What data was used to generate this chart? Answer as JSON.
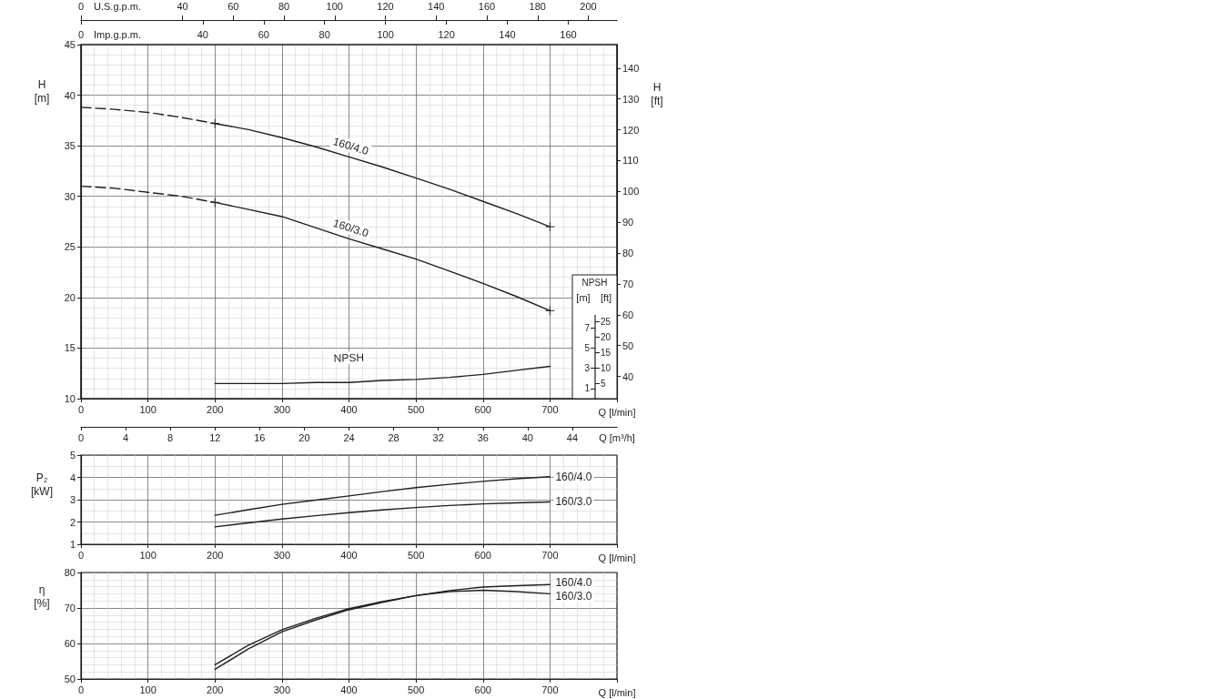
{
  "chart_data": [
    {
      "type": "line",
      "xlabel": "Q [l/min]",
      "ylabel": "H [m]",
      "y2label": "H [ft]",
      "x2label": "U.S.g.p.m.",
      "xlim": [
        0,
        800
      ],
      "xticks": [
        0,
        100,
        200,
        300,
        400,
        500,
        600,
        700
      ],
      "x2lim": [
        0,
        211.3
      ],
      "x2ticks": [
        0,
        40,
        60,
        80,
        100,
        120,
        140,
        160,
        180,
        200
      ],
      "ylim": [
        10,
        45
      ],
      "yticks": [
        10,
        15,
        20,
        25,
        30,
        35,
        40,
        45
      ],
      "y2lim": [
        32.8,
        147.6
      ],
      "y2ticks": [
        40,
        50,
        60,
        70,
        80,
        90,
        100,
        110,
        120,
        130,
        140
      ],
      "grid": true,
      "series": [
        {
          "name": "160/4.0",
          "color": "#1f1f1f",
          "line_style": "solid",
          "x": [
            200,
            250,
            300,
            350,
            400,
            450,
            500,
            550,
            600,
            650,
            700
          ],
          "values": [
            37.2,
            36.6,
            35.8,
            34.9,
            33.9,
            32.9,
            31.8,
            30.7,
            29.5,
            28.3,
            27.0
          ]
        },
        {
          "name": "160/3.0",
          "color": "#1f1f1f",
          "line_style": "solid",
          "x": [
            200,
            250,
            300,
            350,
            400,
            450,
            500,
            550,
            600,
            650,
            700
          ],
          "values": [
            29.4,
            28.7,
            28.0,
            26.9,
            25.8,
            24.8,
            23.8,
            22.6,
            21.4,
            20.1,
            18.7
          ]
        },
        {
          "color": "#1f1f1f",
          "line_style": "dashed",
          "x": [
            0,
            50,
            100,
            150,
            200
          ],
          "values": [
            38.8,
            38.6,
            38.3,
            37.8,
            37.2
          ]
        },
        {
          "color": "#1f1f1f",
          "line_style": "dashed",
          "x": [
            0,
            50,
            100,
            150,
            200
          ],
          "values": [
            31.0,
            30.8,
            30.4,
            30.0,
            29.4
          ]
        },
        {
          "type": "scatter",
          "marker": "cross",
          "color": "#1f1f1f",
          "x": [
            200,
            700,
            200,
            700
          ],
          "values": [
            37.2,
            27.0,
            29.4,
            18.7
          ]
        }
      ]
    },
    {
      "type": "line",
      "title": "NPSH",
      "ylabel": "[m]",
      "y2label": "[ft]",
      "x2label": "Imp.g.p.m.",
      "tick_labels": "y",
      "xlim": [
        0,
        800
      ],
      "xticks": [
        0,
        100,
        200,
        300,
        400,
        500,
        600,
        700
      ],
      "x2lim": [
        0,
        176
      ],
      "x2ticks": [
        0,
        40,
        60,
        80,
        100,
        120,
        140,
        160
      ],
      "ylim": [
        0,
        35
      ],
      "yticks": [
        1,
        3,
        5,
        7
      ],
      "y2lim": [
        0,
        114.8
      ],
      "y2ticks": [
        5,
        10,
        15,
        20,
        25
      ],
      "series": [
        {
          "name": "NPSH",
          "color": "#1f1f1f",
          "line_style": "solid",
          "x": [
            200,
            250,
            300,
            350,
            400,
            450,
            500,
            550,
            600,
            650,
            700
          ],
          "values": [
            1.5,
            1.5,
            1.5,
            1.6,
            1.6,
            1.8,
            1.9,
            2.1,
            2.4,
            2.8,
            3.2
          ]
        }
      ]
    },
    {
      "type": "line",
      "xlabel": "Q [l/min]",
      "ylabel": "P₂ [kW]",
      "x2label": "Q [m³/h]",
      "xlim": [
        0,
        800
      ],
      "xticks": [
        0,
        100,
        200,
        300,
        400,
        500,
        600,
        700
      ],
      "x2lim": [
        0,
        48
      ],
      "x2ticks": [
        0,
        4,
        8,
        12,
        16,
        20,
        24,
        28,
        32,
        36,
        40,
        44
      ],
      "ylim": [
        1,
        5
      ],
      "yticks": [
        1,
        2,
        3,
        4,
        5
      ],
      "grid": true,
      "series": [
        {
          "name": "160/4.0",
          "color": "#1f1f1f",
          "line_style": "solid",
          "x": [
            200,
            250,
            300,
            350,
            400,
            450,
            500,
            550,
            600,
            650,
            700
          ],
          "values": [
            2.3,
            2.55,
            2.79,
            2.98,
            3.17,
            3.36,
            3.54,
            3.69,
            3.82,
            3.94,
            4.03
          ]
        },
        {
          "name": "160/3.0",
          "color": "#1f1f1f",
          "line_style": "solid",
          "x": [
            200,
            250,
            300,
            350,
            400,
            450,
            500,
            550,
            600,
            650,
            700
          ],
          "values": [
            1.78,
            1.96,
            2.13,
            2.28,
            2.42,
            2.54,
            2.65,
            2.74,
            2.81,
            2.86,
            2.9
          ]
        }
      ]
    },
    {
      "type": "line",
      "xlabel": "Q [l/min]",
      "ylabel": "η [%]",
      "xlim": [
        0,
        800
      ],
      "xticks": [
        0,
        100,
        200,
        300,
        400,
        500,
        600,
        700
      ],
      "ylim": [
        50,
        80
      ],
      "yticks": [
        50,
        60,
        70,
        80
      ],
      "grid": true,
      "series": [
        {
          "name": "160/4.0",
          "color": "#1f1f1f",
          "line_style": "solid",
          "x": [
            200,
            250,
            300,
            350,
            400,
            450,
            500,
            550,
            600,
            650,
            700
          ],
          "values": [
            54.0,
            59.5,
            63.9,
            67.1,
            69.8,
            71.8,
            73.5,
            74.9,
            75.9,
            76.3,
            76.6
          ]
        },
        {
          "name": "160/3.0",
          "color": "#1f1f1f",
          "line_style": "solid",
          "x": [
            200,
            250,
            300,
            350,
            400,
            450,
            500,
            550,
            600,
            650,
            700
          ],
          "values": [
            52.7,
            58.5,
            63.3,
            66.6,
            69.5,
            71.6,
            73.5,
            74.6,
            75.0,
            74.6,
            74.0
          ]
        }
      ]
    }
  ]
}
